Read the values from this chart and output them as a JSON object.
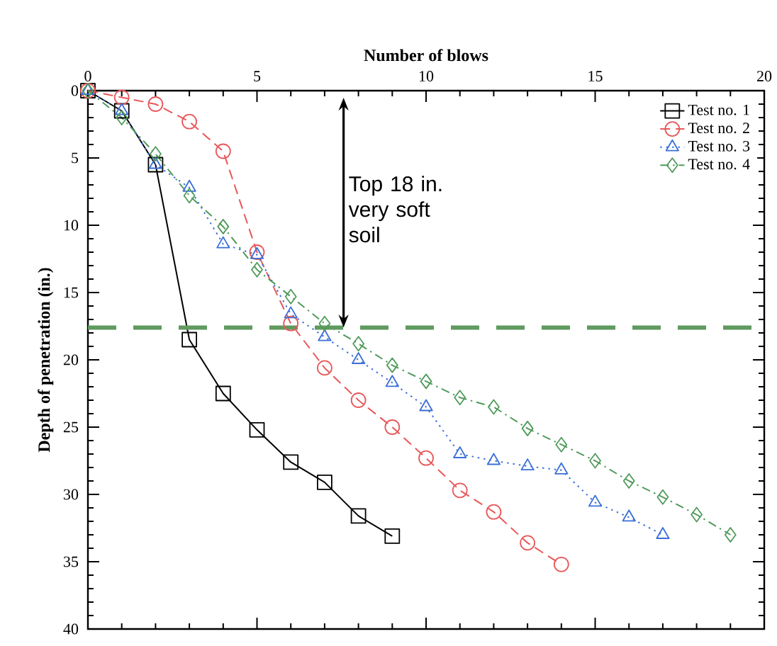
{
  "chart_data": {
    "type": "line",
    "xlabel": "Number of blows",
    "ylabel": "Depth of penetration (in.)",
    "xlim": [
      0,
      20
    ],
    "xticks": [
      0,
      5,
      10,
      15,
      20
    ],
    "ylim": [
      40,
      0
    ],
    "yticks": [
      0,
      5,
      10,
      15,
      20,
      25,
      30,
      35,
      40
    ],
    "legend": "top right",
    "grid": false,
    "series": [
      {
        "name": "Test no. 1",
        "color": "#000000",
        "marker": "square",
        "line_style": "solid",
        "x": [
          0,
          1,
          2,
          3,
          4,
          5,
          6,
          7,
          8,
          9
        ],
        "values": [
          0,
          1.5,
          5.5,
          18.5,
          22.5,
          25.2,
          27.6,
          29.1,
          31.6,
          33.1
        ]
      },
      {
        "name": "Test no. 2",
        "color": "#e8585a",
        "marker": "circle",
        "line_style": "dashed",
        "x": [
          0,
          1,
          2,
          3,
          4,
          5,
          6,
          7,
          8,
          9,
          10,
          11,
          12,
          13,
          14
        ],
        "values": [
          0,
          0.5,
          1,
          2.3,
          4.5,
          12,
          17.3,
          20.6,
          23,
          25,
          27.3,
          29.7,
          31.3,
          33.6,
          35.2
        ]
      },
      {
        "name": "Test no. 3",
        "color": "#3a6fd8",
        "marker": "triangle",
        "line_style": "dotted",
        "x": [
          0,
          1,
          2,
          3,
          4,
          5,
          6,
          7,
          8,
          9,
          10,
          11,
          12,
          13,
          14,
          15,
          16,
          17
        ],
        "values": [
          0,
          1.5,
          5.5,
          7.2,
          11.4,
          12.2,
          16.6,
          18.3,
          20,
          21.7,
          23.5,
          27,
          27.5,
          27.9,
          28.2,
          30.6,
          31.7,
          33
        ]
      },
      {
        "name": "Test no. 4",
        "color": "#4f9a5a",
        "marker": "diamond",
        "line_style": "dashdot",
        "x": [
          0,
          1,
          2,
          3,
          4,
          5,
          6,
          7,
          8,
          9,
          10,
          11,
          12,
          13,
          14,
          15,
          16,
          17,
          18,
          19
        ],
        "values": [
          0,
          2,
          4.7,
          7.8,
          10.1,
          13.3,
          15.3,
          17.3,
          18.8,
          20.4,
          21.6,
          22.8,
          23.5,
          25.1,
          26.3,
          27.5,
          29,
          30.2,
          31.5,
          33
        ]
      }
    ],
    "ref_lines": [
      {
        "axis": "y",
        "value": 17.6,
        "color": "#5f9a5f",
        "line_style": "dashed"
      }
    ],
    "annotations": [
      "Top 18 in. very soft soil"
    ]
  }
}
